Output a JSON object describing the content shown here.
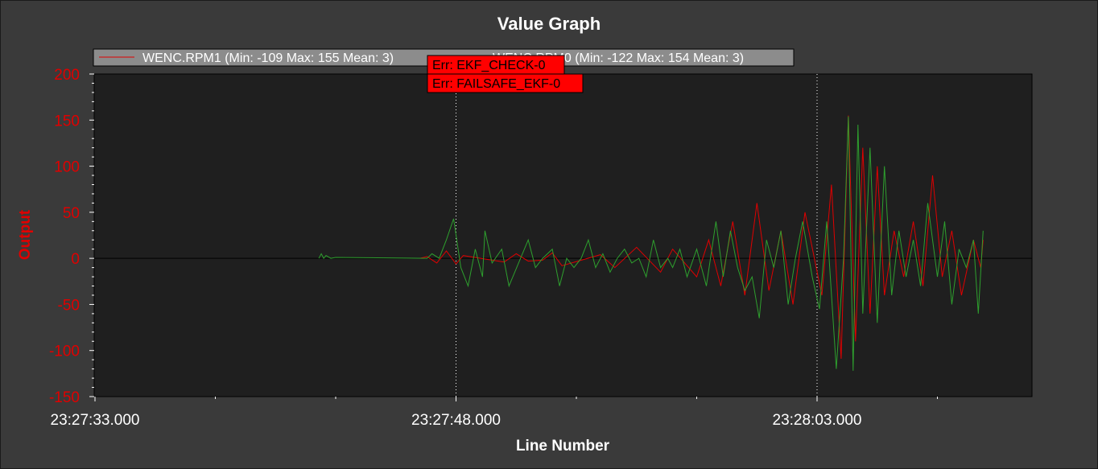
{
  "chart_data": {
    "type": "line",
    "title": "Value Graph",
    "xlabel": "Line Number",
    "ylabel": "Output",
    "ylim": [
      -150,
      200
    ],
    "yticks": [
      200,
      150,
      100,
      50,
      0,
      -50,
      -100,
      -150
    ],
    "xlim_seconds": [
      0,
      39
    ],
    "xticks": [
      {
        "t": 0,
        "label": "23:27:33.000"
      },
      {
        "t": 15,
        "label": "23:27:48.000"
      },
      {
        "t": 30,
        "label": "23:28:03.000"
      }
    ],
    "minor_xticks": [
      5,
      10,
      20,
      25,
      35
    ],
    "grid": false,
    "legend_position": "top",
    "series": [
      {
        "name": "WENC.RPM1 (Min: -109 Max: 155 Mean: 3)",
        "color": "#e00000",
        "points": [
          [
            13.5,
            0
          ],
          [
            13.8,
            2
          ],
          [
            14.2,
            -5
          ],
          [
            14.6,
            8
          ],
          [
            15.0,
            -6
          ],
          [
            15.3,
            3
          ],
          [
            17.0,
            -4
          ],
          [
            17.5,
            5
          ],
          [
            18.0,
            -3
          ],
          [
            18.6,
            -2
          ],
          [
            19.0,
            6
          ],
          [
            19.4,
            -8
          ],
          [
            21.0,
            4
          ],
          [
            21.6,
            -10
          ],
          [
            22.5,
            12
          ],
          [
            23.5,
            -15
          ],
          [
            24.0,
            10
          ],
          [
            25.0,
            -20
          ],
          [
            25.5,
            20
          ],
          [
            26.0,
            -30
          ],
          [
            26.5,
            40
          ],
          [
            27.0,
            -40
          ],
          [
            27.5,
            60
          ],
          [
            28.0,
            -35
          ],
          [
            28.5,
            30
          ],
          [
            29.0,
            -50
          ],
          [
            29.5,
            50
          ],
          [
            30.2,
            -40
          ],
          [
            30.6,
            80
          ],
          [
            31.0,
            -109
          ],
          [
            31.3,
            155
          ],
          [
            31.6,
            -90
          ],
          [
            31.9,
            120
          ],
          [
            32.2,
            -60
          ],
          [
            32.5,
            100
          ],
          [
            32.8,
            -40
          ],
          [
            33.2,
            30
          ],
          [
            33.6,
            -20
          ],
          [
            34.0,
            40
          ],
          [
            34.4,
            -30
          ],
          [
            34.8,
            90
          ],
          [
            35.2,
            -20
          ],
          [
            35.6,
            30
          ],
          [
            36.0,
            -40
          ],
          [
            36.5,
            20
          ],
          [
            36.8,
            -10
          ],
          [
            36.9,
            20
          ]
        ]
      },
      {
        "name": "WENC.RPM0 (Min: -122 Max: 154 Mean: 3)",
        "color": "#2ea02e",
        "points": [
          [
            9.3,
            0
          ],
          [
            9.4,
            5
          ],
          [
            9.5,
            0
          ],
          [
            9.6,
            3
          ],
          [
            9.8,
            0
          ],
          [
            10.0,
            1
          ],
          [
            13.8,
            0
          ],
          [
            14.0,
            5
          ],
          [
            14.3,
            0
          ],
          [
            14.6,
            20
          ],
          [
            14.9,
            43
          ],
          [
            15.2,
            -10
          ],
          [
            15.5,
            -30
          ],
          [
            15.8,
            10
          ],
          [
            16.1,
            -20
          ],
          [
            16.2,
            30
          ],
          [
            16.5,
            -5
          ],
          [
            16.9,
            10
          ],
          [
            17.2,
            -30
          ],
          [
            17.6,
            -5
          ],
          [
            18.0,
            20
          ],
          [
            18.3,
            -10
          ],
          [
            18.6,
            0
          ],
          [
            19.0,
            10
          ],
          [
            19.3,
            -30
          ],
          [
            19.6,
            0
          ],
          [
            19.9,
            -10
          ],
          [
            20.2,
            0
          ],
          [
            20.5,
            20
          ],
          [
            20.8,
            -10
          ],
          [
            21.1,
            5
          ],
          [
            21.4,
            -15
          ],
          [
            21.7,
            0
          ],
          [
            22.0,
            10
          ],
          [
            22.3,
            -5
          ],
          [
            22.6,
            0
          ],
          [
            22.9,
            -20
          ],
          [
            23.2,
            20
          ],
          [
            23.5,
            -10
          ],
          [
            23.8,
            0
          ],
          [
            24.0,
            -10
          ],
          [
            24.3,
            10
          ],
          [
            24.6,
            -20
          ],
          [
            25.0,
            10
          ],
          [
            25.4,
            -30
          ],
          [
            25.8,
            40
          ],
          [
            26.1,
            -20
          ],
          [
            26.4,
            30
          ],
          [
            26.7,
            -10
          ],
          [
            27.0,
            -35
          ],
          [
            27.3,
            -20
          ],
          [
            27.6,
            -65
          ],
          [
            27.9,
            20
          ],
          [
            28.2,
            -10
          ],
          [
            28.5,
            30
          ],
          [
            28.8,
            -50
          ],
          [
            29.1,
            0
          ],
          [
            29.4,
            40
          ],
          [
            29.8,
            -20
          ],
          [
            30.1,
            -55
          ],
          [
            30.4,
            40
          ],
          [
            30.8,
            -120
          ],
          [
            31.1,
            0
          ],
          [
            31.3,
            154
          ],
          [
            31.5,
            -122
          ],
          [
            31.7,
            145
          ],
          [
            31.9,
            -60
          ],
          [
            32.2,
            120
          ],
          [
            32.5,
            -70
          ],
          [
            32.8,
            100
          ],
          [
            33.1,
            -40
          ],
          [
            33.4,
            30
          ],
          [
            33.7,
            -20
          ],
          [
            34.0,
            20
          ],
          [
            34.3,
            -30
          ],
          [
            34.6,
            60
          ],
          [
            35.0,
            -20
          ],
          [
            35.3,
            40
          ],
          [
            35.6,
            -50
          ],
          [
            35.9,
            10
          ],
          [
            36.2,
            -10
          ],
          [
            36.5,
            20
          ],
          [
            36.7,
            -60
          ],
          [
            36.9,
            30
          ]
        ]
      }
    ],
    "annotations": [
      {
        "t": 15.0,
        "lines": [
          "Err: EKF_CHECK-0",
          "Err: FAILSAFE_EKF-0"
        ]
      },
      {
        "t": 30.0,
        "lines": []
      }
    ],
    "colors": {
      "background": "#3a3a3a",
      "plot_area": "#1f1f1f",
      "annotation_fill": "#ff0000",
      "legend_fill": "#8c8c8c"
    }
  }
}
